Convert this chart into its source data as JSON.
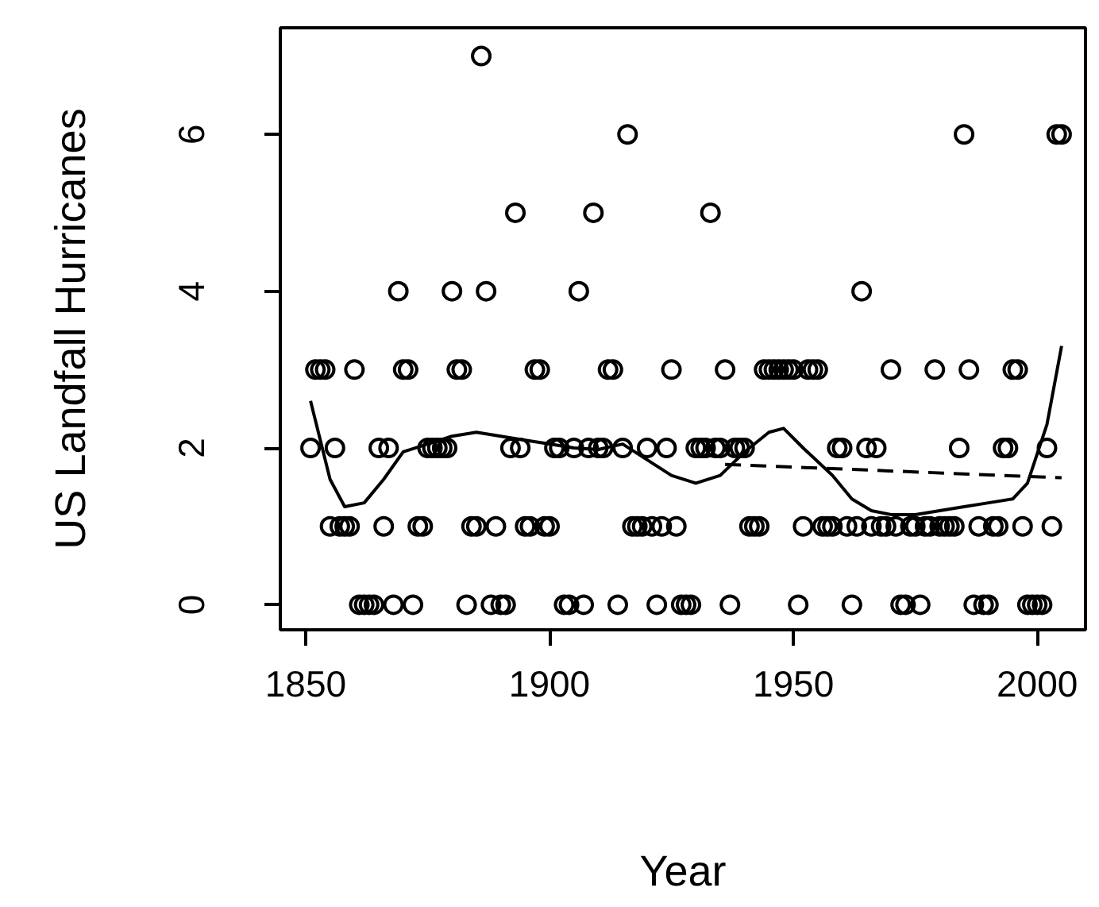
{
  "chart_data": {
    "type": "scatter",
    "xlabel": "Year",
    "ylabel": "US Landfall Hurricanes",
    "xlim": [
      1844.8,
      2009.9
    ],
    "ylim": [
      -0.32,
      7.36
    ],
    "xticks": [
      1850,
      1900,
      1950,
      2000
    ],
    "yticks": [
      0,
      2,
      4,
      6
    ],
    "series": [
      {
        "marker": "circle",
        "color": "#000000",
        "x": [
          1851,
          1852,
          1853,
          1854,
          1855,
          1856,
          1857,
          1858,
          1859,
          1860,
          1861,
          1862,
          1863,
          1864,
          1865,
          1866,
          1867,
          1868,
          1869,
          1870,
          1871,
          1872,
          1873,
          1874,
          1875,
          1876,
          1877,
          1878,
          1879,
          1880,
          1881,
          1882,
          1883,
          1884,
          1885,
          1886,
          1887,
          1888,
          1889,
          1890,
          1891,
          1892,
          1893,
          1894,
          1895,
          1896,
          1897,
          1898,
          1899,
          1900,
          1901,
          1902,
          1903,
          1904,
          1905,
          1906,
          1907,
          1908,
          1909,
          1910,
          1911,
          1912,
          1913,
          1914,
          1915,
          1916,
          1917,
          1918,
          1919,
          1920,
          1921,
          1922,
          1923,
          1924,
          1925,
          1926,
          1927,
          1928,
          1929,
          1930,
          1931,
          1932,
          1933,
          1934,
          1935,
          1936,
          1937,
          1938,
          1939,
          1940,
          1941,
          1942,
          1943,
          1944,
          1945,
          1946,
          1947,
          1948,
          1949,
          1950,
          1951,
          1952,
          1953,
          1954,
          1955,
          1956,
          1957,
          1958,
          1959,
          1960,
          1961,
          1962,
          1963,
          1964,
          1965,
          1966,
          1967,
          1968,
          1969,
          1970,
          1971,
          1972,
          1973,
          1974,
          1975,
          1976,
          1977,
          1978,
          1979,
          1980,
          1981,
          1982,
          1983,
          1984,
          1985,
          1986,
          1987,
          1988,
          1989,
          1990,
          1991,
          1992,
          1993,
          1994,
          1995,
          1996,
          1997,
          1998,
          1999,
          2000,
          2001,
          2002,
          2003,
          2004,
          2005
        ],
        "values": [
          2,
          3,
          3,
          3,
          1,
          2,
          1,
          1,
          1,
          3,
          0,
          0,
          0,
          0,
          2,
          1,
          2,
          0,
          4,
          3,
          3,
          0,
          1,
          1,
          2,
          2,
          2,
          2,
          2,
          4,
          3,
          3,
          0,
          1,
          1,
          7,
          4,
          0,
          1,
          0,
          0,
          2,
          5,
          2,
          1,
          1,
          3,
          3,
          1,
          1,
          2,
          2,
          0,
          0,
          2,
          4,
          0,
          2,
          5,
          2,
          2,
          3,
          3,
          0,
          2,
          6,
          1,
          1,
          1,
          2,
          1,
          0,
          1,
          2,
          3,
          1,
          0,
          0,
          0,
          2,
          2,
          2,
          5,
          2,
          2,
          3,
          0,
          2,
          2,
          2,
          1,
          1,
          1,
          3,
          3,
          3,
          3,
          3,
          3,
          3,
          0,
          1,
          3,
          3,
          3,
          1,
          1,
          1,
          2,
          2,
          1,
          0,
          1,
          4,
          2,
          1,
          2,
          1,
          1,
          3,
          1,
          0,
          0,
          1,
          1,
          0,
          1,
          1,
          3,
          1,
          1,
          1,
          1,
          2,
          6,
          3,
          0,
          1,
          0,
          0,
          1,
          1,
          2,
          2,
          3,
          3,
          1,
          0,
          0,
          0,
          0,
          2,
          1,
          6,
          6
        ]
      },
      {
        "type": "line",
        "line_style": "solid",
        "color": "#000000",
        "x": [
          1851,
          1855,
          1858,
          1862,
          1866,
          1870,
          1875,
          1880,
          1885,
          1890,
          1895,
          1900,
          1905,
          1910,
          1915,
          1920,
          1925,
          1930,
          1935,
          1940,
          1945,
          1948,
          1952,
          1958,
          1962,
          1966,
          1970,
          1975,
          1980,
          1985,
          1990,
          1995,
          1998,
          2002,
          2005
        ],
        "values": [
          2.6,
          1.6,
          1.25,
          1.3,
          1.6,
          1.95,
          2.05,
          2.15,
          2.2,
          2.15,
          2.1,
          2.05,
          2.0,
          1.98,
          2.05,
          1.85,
          1.65,
          1.55,
          1.65,
          1.95,
          2.2,
          2.25,
          2.0,
          1.65,
          1.35,
          1.2,
          1.15,
          1.15,
          1.2,
          1.25,
          1.3,
          1.35,
          1.55,
          2.3,
          3.3
        ]
      },
      {
        "type": "line",
        "line_style": "dashed",
        "color": "#000000",
        "x": [
          1936,
          2005
        ],
        "values": [
          1.79,
          1.62
        ]
      }
    ]
  }
}
